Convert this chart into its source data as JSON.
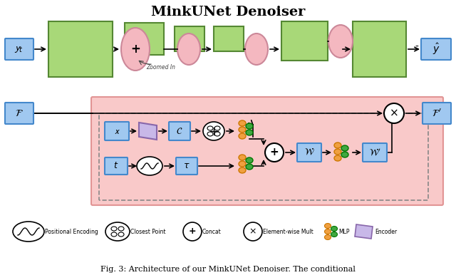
{
  "title": "MinkUNet Denoiser",
  "title_fontsize": 14,
  "fig_width": 6.4,
  "fig_height": 3.93,
  "bg_color": "#ffffff",
  "green_color": "#90c96a",
  "green_fill": "#a8d878",
  "pink_ellipse": "#f4b8c0",
  "pink_bg": "#f4a0a8",
  "blue_box": "#87b8e8",
  "blue_fill": "#a0c8f0",
  "purple_fill": "#c8b8e8",
  "orange_dot": "#f0a040",
  "green_dot": "#40a840",
  "legend_labels": [
    "Positional Encoding",
    "Closest Point",
    "Concat",
    "Element-wise Mult",
    "MLP",
    "Encoder"
  ],
  "caption": "Fig. 3: Architecture of our MinkUNet Denoiser. The conditional"
}
